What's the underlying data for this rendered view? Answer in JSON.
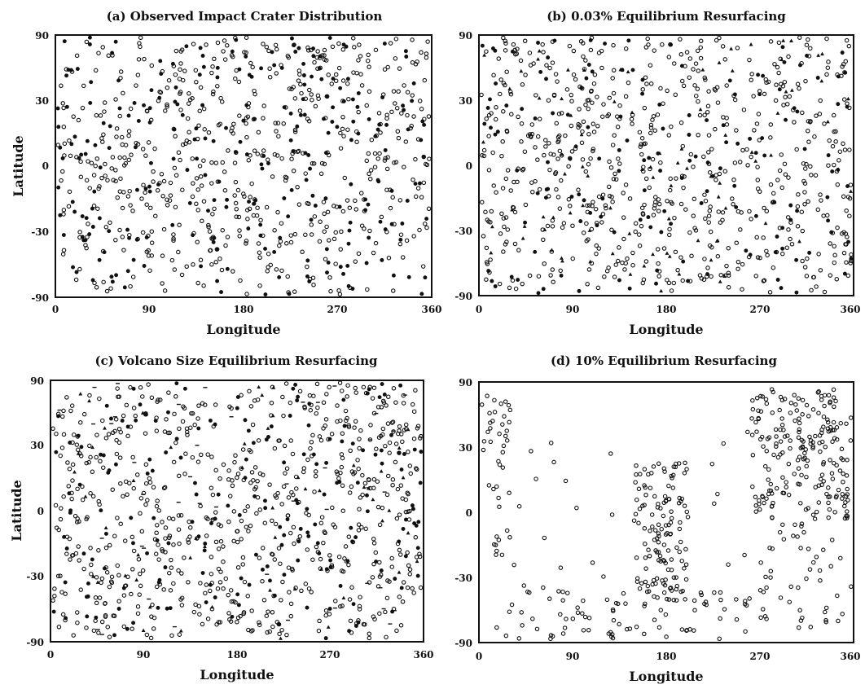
{
  "figure": {
    "panels": [
      {
        "id": "a",
        "title": "(a) Observed Impact Crater Distribution",
        "xlabel": "Longitude",
        "ylabel": "Latitude"
      },
      {
        "id": "b",
        "title": "(b) 0.03% Equilibrium Resurfacing",
        "xlabel": "Longitude",
        "ylabel": ""
      },
      {
        "id": "c",
        "title": "(c) Volcano Size Equilibrium Resurfacing",
        "xlabel": "Longitude",
        "ylabel": "Latitude"
      },
      {
        "id": "d",
        "title": "(d) 10% Equilibrium Resurfacing",
        "xlabel": "Longitude",
        "ylabel": ""
      }
    ],
    "x_ticks": [
      "0",
      "90",
      "180",
      "270",
      "360"
    ],
    "y_ticks": [
      "90",
      "30",
      "0",
      "-30",
      "-90"
    ],
    "colors": {
      "ink": "#111111",
      "background": "#ffffff"
    }
  },
  "chart_data": [
    {
      "type": "scatter",
      "title": "(a) Observed Impact Crater Distribution",
      "xlabel": "Longitude",
      "ylabel": "Latitude",
      "xlim": [
        0,
        360
      ],
      "ylim": [
        -90,
        90
      ],
      "xticks": [
        0,
        90,
        180,
        270,
        360
      ],
      "yticks": [
        -90,
        -30,
        0,
        30,
        90
      ],
      "grid": false,
      "marker_styles": [
        "open-circle",
        "filled-circle"
      ],
      "point_count_approx": 900,
      "distribution": "nearly uniform random over the whole surface, slightly sparser below -60 latitude",
      "density_regions": [
        {
          "lon": [
            0,
            360
          ],
          "lat": [
            -60,
            90
          ],
          "relative_density": 1.0
        },
        {
          "lon": [
            0,
            360
          ],
          "lat": [
            -90,
            -60
          ],
          "relative_density": 0.6
        }
      ]
    },
    {
      "type": "scatter",
      "title": "(b) 0.03% Equilibrium Resurfacing",
      "xlabel": "Longitude",
      "ylabel": "",
      "xlim": [
        0,
        360
      ],
      "ylim": [
        -90,
        90
      ],
      "xticks": [
        0,
        90,
        180,
        270,
        360
      ],
      "yticks": [
        -90,
        -30,
        0,
        30,
        90
      ],
      "grid": false,
      "marker_styles": [
        "open-circle",
        "filled-circle",
        "triangle"
      ],
      "point_count_approx": 950,
      "distribution": "nearly uniform random over the whole surface",
      "density_regions": [
        {
          "lon": [
            0,
            360
          ],
          "lat": [
            -90,
            90
          ],
          "relative_density": 1.0
        }
      ]
    },
    {
      "type": "scatter",
      "title": "(c) Volcano Size Equilibrium Resurfacing",
      "xlabel": "Longitude",
      "ylabel": "Latitude",
      "xlim": [
        0,
        360
      ],
      "ylim": [
        -90,
        90
      ],
      "xticks": [
        0,
        90,
        180,
        270,
        360
      ],
      "yticks": [
        -90,
        -30,
        0,
        30,
        90
      ],
      "grid": false,
      "marker_styles": [
        "open-circle",
        "filled-circle",
        "triangle",
        "dash"
      ],
      "point_count_approx": 1050,
      "distribution": "nearly uniform random over the whole surface",
      "density_regions": [
        {
          "lon": [
            0,
            360
          ],
          "lat": [
            -90,
            90
          ],
          "relative_density": 1.0
        }
      ]
    },
    {
      "type": "scatter",
      "title": "(d) 10% Equilibrium Resurfacing",
      "xlabel": "Longitude",
      "ylabel": "",
      "xlim": [
        0,
        360
      ],
      "ylim": [
        -90,
        90
      ],
      "xticks": [
        0,
        90,
        180,
        270,
        360
      ],
      "yticks": [
        -90,
        -30,
        0,
        30,
        90
      ],
      "grid": false,
      "marker_styles": [
        "open-circle"
      ],
      "point_count_approx": 560,
      "distribution": "strongly clustered: dense regions around lon 265-360 lat -10..85 and lon 150-200 lat -55..35, band near the south, large empty areas",
      "density_regions": [
        {
          "lon": [
            262,
            360
          ],
          "lat": [
            -10,
            85
          ],
          "relative_density": 1.0
        },
        {
          "lon": [
            150,
            200
          ],
          "lat": [
            -55,
            35
          ],
          "relative_density": 1.0
        },
        {
          "lon": [
            0,
            30
          ],
          "lat": [
            25,
            85
          ],
          "relative_density": 0.5
        },
        {
          "lon": [
            0,
            30
          ],
          "lat": [
            -30,
            20
          ],
          "relative_density": 0.3
        },
        {
          "lon": [
            10,
            260
          ],
          "lat": [
            -88,
            -50
          ],
          "relative_density": 0.45
        },
        {
          "lon": [
            270,
            360
          ],
          "lat": [
            -80,
            -10
          ],
          "relative_density": 0.3
        },
        {
          "lon": [
            30,
            150
          ],
          "lat": [
            -50,
            60
          ],
          "relative_density": 0.05
        },
        {
          "lon": [
            200,
            262
          ],
          "lat": [
            -50,
            60
          ],
          "relative_density": 0.04
        }
      ]
    }
  ]
}
